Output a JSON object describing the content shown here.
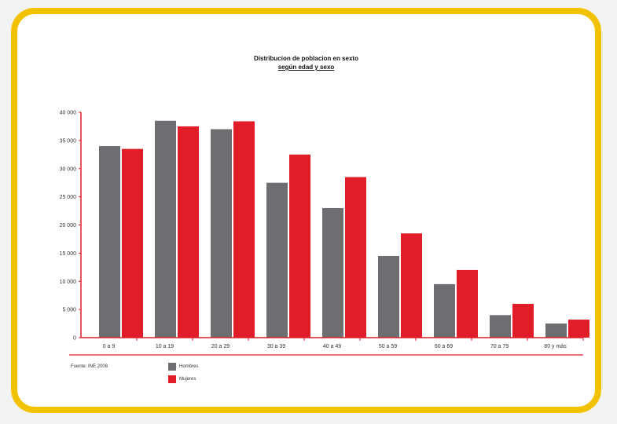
{
  "colors": {
    "frame": "#f2c200",
    "hombres": "#6d6e72",
    "mujeres": "#e11d2a",
    "axis": "#e11d2a"
  },
  "chart_data": {
    "type": "bar",
    "title": "Distribucion de poblacion en sexto",
    "subtitle": "según edad y sexo",
    "categories": [
      "0 a 9",
      "10 a 19",
      "20 a 29",
      "30 a 39",
      "40 a 49",
      "50 a 59",
      "60 a 69",
      "70 a 79",
      "80 y más"
    ],
    "series": [
      {
        "name": "Hombres",
        "values": [
          34000,
          38500,
          37000,
          27500,
          23000,
          14500,
          9500,
          4000,
          2500
        ]
      },
      {
        "name": "Mujeres",
        "values": [
          33500,
          37500,
          38400,
          32500,
          28500,
          18500,
          12000,
          6000,
          3200
        ]
      }
    ],
    "yticks": [
      "0",
      "5 000",
      "10 000",
      "15 000",
      "20 000",
      "25 000",
      "30 000",
      "35 000",
      "40 000"
    ],
    "ylim": [
      0,
      40000
    ],
    "grid": false,
    "legend_position": "bottom-left",
    "source": "Fuente: INE 2008"
  }
}
